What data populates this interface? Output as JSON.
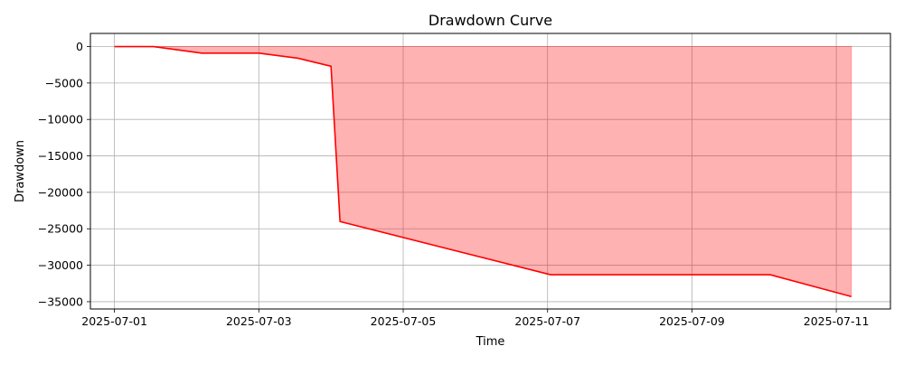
{
  "chart_data": {
    "type": "area",
    "title": "Drawdown Curve",
    "xlabel": "Time",
    "ylabel": "Drawdown",
    "x_ticks": [
      "2025-07-01",
      "2025-07-03",
      "2025-07-05",
      "2025-07-07",
      "2025-07-09",
      "2025-07-11"
    ],
    "y_ticks": [
      0,
      -5000,
      -10000,
      -15000,
      -20000,
      -25000,
      -30000,
      -35000
    ],
    "y_tick_labels": [
      "0",
      "−5000",
      "−10000",
      "−15000",
      "−20000",
      "−25000",
      "−30000",
      "−35000"
    ],
    "xlim": [
      "2025-06-30T16:00",
      "2025-07-11T18:00"
    ],
    "ylim": [
      -36000,
      1800
    ],
    "grid": true,
    "series": [
      {
        "line_color": "#ff0000",
        "fill_color": "#ff0000",
        "fill_opacity": 0.3,
        "x": [
          "2025-07-01T00:00",
          "2025-07-01T13:00",
          "2025-07-02T05:00",
          "2025-07-03T00:00",
          "2025-07-03T13:00",
          "2025-07-04T00:00",
          "2025-07-04T03:00",
          "2025-07-07T01:00",
          "2025-07-10T02:00",
          "2025-07-11T05:00"
        ],
        "y": [
          0,
          0,
          -900,
          -900,
          -1600,
          -2700,
          -24000,
          -31300,
          -31300,
          -34300
        ]
      }
    ]
  }
}
